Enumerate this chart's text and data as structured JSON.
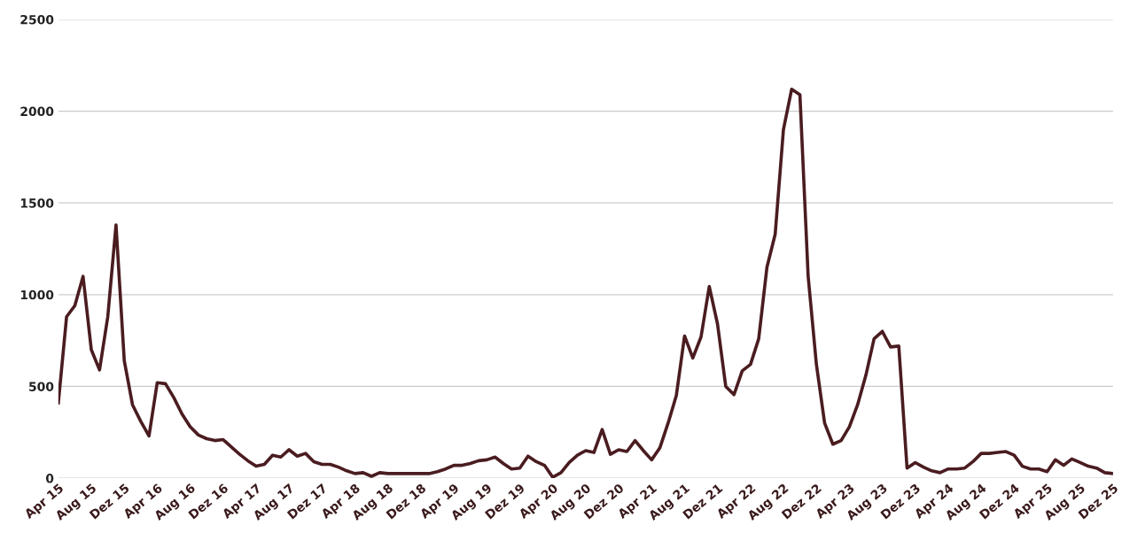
{
  "chart_data": {
    "type": "line",
    "line_style": "solid",
    "marker": "none",
    "grid": "y",
    "legend": false,
    "ylim": [
      0,
      2500
    ],
    "yticks": [
      0,
      500,
      1000,
      1500,
      2000,
      2500
    ],
    "xlim": [
      "2015-04",
      "2025-12"
    ],
    "xticks": [
      {
        "value": "2015-04",
        "label": "Apr 15"
      },
      {
        "value": "2015-08",
        "label": "Aug 15"
      },
      {
        "value": "2015-12",
        "label": "Dez 15"
      },
      {
        "value": "2016-04",
        "label": "Apr 16"
      },
      {
        "value": "2016-08",
        "label": "Aug 16"
      },
      {
        "value": "2016-12",
        "label": "Dez 16"
      },
      {
        "value": "2017-04",
        "label": "Apr 17"
      },
      {
        "value": "2017-08",
        "label": "Aug 17"
      },
      {
        "value": "2017-12",
        "label": "Dez 17"
      },
      {
        "value": "2018-04",
        "label": "Apr 18"
      },
      {
        "value": "2018-08",
        "label": "Aug 18"
      },
      {
        "value": "2018-12",
        "label": "Dez 18"
      },
      {
        "value": "2019-04",
        "label": "Apr 19"
      },
      {
        "value": "2019-08",
        "label": "Aug 19"
      },
      {
        "value": "2019-12",
        "label": "Dez 19"
      },
      {
        "value": "2020-04",
        "label": "Apr 20"
      },
      {
        "value": "2020-08",
        "label": "Aug 20"
      },
      {
        "value": "2020-12",
        "label": "Dez 20"
      },
      {
        "value": "2021-04",
        "label": "Apr 21"
      },
      {
        "value": "2021-08",
        "label": "Aug 21"
      },
      {
        "value": "2021-12",
        "label": "Dez 21"
      },
      {
        "value": "2022-04",
        "label": "Apr 22"
      },
      {
        "value": "2022-08",
        "label": "Aug 22"
      },
      {
        "value": "2022-12",
        "label": "Dez 22"
      },
      {
        "value": "2023-04",
        "label": "Apr 23"
      },
      {
        "value": "2023-08",
        "label": "Aug 23"
      },
      {
        "value": "2023-12",
        "label": "Dez 23"
      },
      {
        "value": "2024-04",
        "label": "Apr 24"
      },
      {
        "value": "2024-08",
        "label": "Aug 24"
      },
      {
        "value": "2024-12",
        "label": "Dez 24"
      },
      {
        "value": "2025-04",
        "label": "Apr 25"
      },
      {
        "value": "2025-08",
        "label": "Aug 25"
      },
      {
        "value": "2025-12",
        "label": "Dez 25"
      }
    ],
    "series": [
      {
        "color": "#4a1c20",
        "x": [
          "2015-04",
          "2015-05",
          "2015-06",
          "2015-07",
          "2015-08",
          "2015-09",
          "2015-10",
          "2015-11",
          "2015-12",
          "2016-01",
          "2016-02",
          "2016-03",
          "2016-04",
          "2016-05",
          "2016-06",
          "2016-07",
          "2016-08",
          "2016-09",
          "2016-10",
          "2016-11",
          "2016-12",
          "2017-01",
          "2017-02",
          "2017-03",
          "2017-04",
          "2017-05",
          "2017-06",
          "2017-07",
          "2017-08",
          "2017-09",
          "2017-10",
          "2017-11",
          "2017-12",
          "2018-01",
          "2018-02",
          "2018-03",
          "2018-04",
          "2018-05",
          "2018-06",
          "2018-07",
          "2018-08",
          "2018-09",
          "2018-10",
          "2018-11",
          "2018-12",
          "2019-01",
          "2019-02",
          "2019-03",
          "2019-04",
          "2019-05",
          "2019-06",
          "2019-07",
          "2019-08",
          "2019-09",
          "2019-10",
          "2019-11",
          "2019-12",
          "2020-01",
          "2020-02",
          "2020-03",
          "2020-04",
          "2020-05",
          "2020-06",
          "2020-07",
          "2020-08",
          "2020-09",
          "2020-10",
          "2020-11",
          "2020-12",
          "2021-01",
          "2021-02",
          "2021-03",
          "2021-04",
          "2021-05",
          "2021-06",
          "2021-07",
          "2021-08",
          "2021-09",
          "2021-10",
          "2021-11",
          "2021-12",
          "2022-01",
          "2022-02",
          "2022-03",
          "2022-04",
          "2022-05",
          "2022-06",
          "2022-07",
          "2022-08",
          "2022-09",
          "2022-10",
          "2022-11",
          "2022-12",
          "2023-01",
          "2023-02",
          "2023-03",
          "2023-04",
          "2023-05",
          "2023-06",
          "2023-07",
          "2023-08",
          "2023-09",
          "2023-10",
          "2023-11",
          "2023-12",
          "2024-01",
          "2024-02",
          "2024-03",
          "2024-04",
          "2024-05",
          "2024-06",
          "2024-07",
          "2024-08",
          "2024-09",
          "2024-10",
          "2024-11",
          "2024-12",
          "2025-01",
          "2025-02",
          "2025-03",
          "2025-04",
          "2025-05",
          "2025-06",
          "2025-07",
          "2025-08",
          "2025-09",
          "2025-10",
          "2025-11",
          "2025-12"
        ],
        "values": [
          410,
          880,
          940,
          1100,
          700,
          590,
          880,
          1380,
          640,
          400,
          310,
          230,
          520,
          515,
          440,
          350,
          280,
          235,
          215,
          205,
          210,
          170,
          130,
          95,
          65,
          75,
          125,
          115,
          155,
          120,
          135,
          90,
          75,
          75,
          60,
          40,
          25,
          30,
          10,
          30,
          25,
          25,
          25,
          25,
          25,
          25,
          35,
          50,
          70,
          70,
          80,
          95,
          100,
          115,
          80,
          50,
          55,
          120,
          90,
          70,
          5,
          30,
          85,
          125,
          150,
          140,
          265,
          130,
          155,
          145,
          205,
          150,
          100,
          165,
          300,
          450,
          775,
          655,
          770,
          1045,
          840,
          500,
          455,
          585,
          620,
          760,
          1150,
          1330,
          1900,
          2120,
          2090,
          1100,
          620,
          300,
          185,
          205,
          280,
          400,
          560,
          760,
          800,
          715,
          720,
          55,
          85,
          60,
          40,
          30,
          50,
          50,
          55,
          90,
          135,
          135,
          140,
          145,
          125,
          65,
          50,
          50,
          35,
          100,
          70,
          105,
          85,
          65,
          55,
          30,
          25
        ]
      }
    ]
  }
}
